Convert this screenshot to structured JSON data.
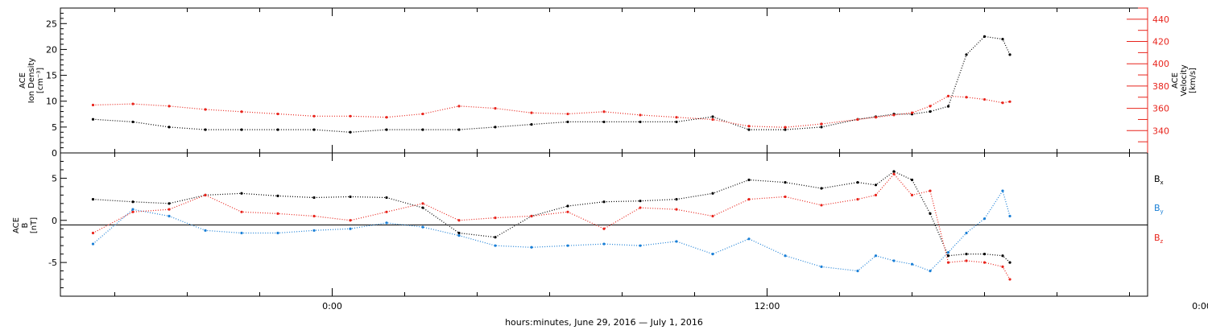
{
  "colors": {
    "black": "#000000",
    "red": "#e8241c",
    "blue": "#1a7fd6"
  },
  "chart_data": [
    {
      "type": "scatter",
      "panel": "top",
      "ylabel_lines": [
        "ACE",
        "Ion Density",
        "[cm⁻³]"
      ],
      "ylim": [
        0,
        28
      ],
      "yticks": [
        0,
        5,
        10,
        15,
        20,
        25
      ],
      "y2label_lines": [
        "ACE",
        "Velocity",
        "[km/s]"
      ],
      "y2lim": [
        320,
        450
      ],
      "y2ticks": [
        340,
        360,
        380,
        400,
        420,
        440
      ],
      "x_hours": [
        -7.5,
        22.5
      ],
      "series": [
        {
          "axis": "left",
          "color": "#000000",
          "x": [
            -6.6,
            -5.5,
            -4.5,
            -3.5,
            -2.5,
            -1.5,
            -0.5,
            0.5,
            1.5,
            2.5,
            3.5,
            4.5,
            5.5,
            6.5,
            7.5,
            8.5,
            9.5,
            10.5,
            11.5,
            12.5,
            13.5,
            14.5,
            15,
            15.5,
            16,
            16.5,
            17,
            17.5,
            18,
            18.5,
            18.7
          ],
          "y": [
            6.5,
            6,
            5,
            4.5,
            4.5,
            4.5,
            4.5,
            4,
            4.5,
            4.5,
            4.5,
            5,
            5.5,
            6,
            6,
            6,
            6,
            7,
            4.5,
            4.5,
            5,
            6.5,
            7,
            7.5,
            7.5,
            8,
            9,
            19,
            22.5,
            22,
            19
          ]
        },
        {
          "axis": "right",
          "color": "#e8241c",
          "x": [
            -6.6,
            -5.5,
            -4.5,
            -3.5,
            -2.5,
            -1.5,
            -0.5,
            0.5,
            1.5,
            2.5,
            3.5,
            4.5,
            5.5,
            6.5,
            7.5,
            8.5,
            9.5,
            10.5,
            11.5,
            12.5,
            13.5,
            14.5,
            15,
            15.5,
            16,
            16.5,
            17,
            17.5,
            18,
            18.5,
            18.7
          ],
          "y": [
            363,
            364,
            362,
            359,
            357,
            355,
            353,
            353,
            352,
            355,
            362,
            360,
            356,
            355,
            357,
            354,
            352,
            350,
            344,
            343,
            346,
            350,
            352,
            354,
            356,
            362,
            371,
            370,
            368,
            365,
            366
          ]
        }
      ]
    },
    {
      "type": "scatter",
      "panel": "bottom",
      "ylabel_lines": [
        "ACE",
        "B",
        "[nT]"
      ],
      "ylim": [
        -9,
        8
      ],
      "yticks": [
        -5,
        0,
        5
      ],
      "x_hours": [
        -7.5,
        22.5
      ],
      "series": [
        {
          "name": "Bx",
          "color": "#000000",
          "x": [
            -6.6,
            -5.5,
            -4.5,
            -3.5,
            -2.5,
            -1.5,
            -0.5,
            0.5,
            1.5,
            2.5,
            3.5,
            4.5,
            5.5,
            6.5,
            7.5,
            8.5,
            9.5,
            10.5,
            11.5,
            12.5,
            13.5,
            14.5,
            15,
            15.5,
            16,
            16.5,
            17,
            17.5,
            18,
            18.5,
            18.7
          ],
          "y": [
            2.5,
            2.2,
            2.0,
            3.0,
            3.2,
            2.9,
            2.7,
            2.8,
            2.7,
            1.5,
            -1.5,
            -2.0,
            0.5,
            1.7,
            2.2,
            2.3,
            2.5,
            3.2,
            4.8,
            4.5,
            3.8,
            4.5,
            4.2,
            5.8,
            4.8,
            0.8,
            -4.2,
            -4.0,
            -4.0,
            -4.2,
            -5.0
          ]
        },
        {
          "name": "By",
          "color": "#1a7fd6",
          "x": [
            -6.6,
            -5.5,
            -4.5,
            -3.5,
            -2.5,
            -1.5,
            -0.5,
            0.5,
            1.5,
            2.5,
            3.5,
            4.5,
            5.5,
            6.5,
            7.5,
            8.5,
            9.5,
            10.5,
            11.5,
            12.5,
            13.5,
            14.5,
            15,
            15.5,
            16,
            16.5,
            17,
            17.5,
            18,
            18.5,
            18.7
          ],
          "y": [
            -2.8,
            1.3,
            0.5,
            -1.2,
            -1.5,
            -1.5,
            -1.2,
            -1.0,
            -0.3,
            -0.8,
            -1.8,
            -3.0,
            -3.2,
            -3.0,
            -2.8,
            -3.0,
            -2.5,
            -4.0,
            -2.2,
            -4.2,
            -5.5,
            -6.0,
            -4.2,
            -4.8,
            -5.2,
            -6.0,
            -3.8,
            -1.5,
            0.2,
            3.5,
            0.5
          ]
        },
        {
          "name": "Bz",
          "color": "#e8241c",
          "x": [
            -6.6,
            -5.5,
            -4.5,
            -3.5,
            -2.5,
            -1.5,
            -0.5,
            0.5,
            1.5,
            2.5,
            3.5,
            4.5,
            5.5,
            6.5,
            7.5,
            8.5,
            9.5,
            10.5,
            11.5,
            12.5,
            13.5,
            14.5,
            15,
            15.5,
            16,
            16.5,
            17,
            17.5,
            18,
            18.5,
            18.7
          ],
          "y": [
            -1.5,
            1.0,
            1.3,
            3.0,
            1.0,
            0.8,
            0.5,
            0.0,
            1.0,
            2.0,
            0.0,
            0.3,
            0.5,
            1.0,
            -1.0,
            1.5,
            1.3,
            0.5,
            2.5,
            2.8,
            1.8,
            2.5,
            3.0,
            5.5,
            3.0,
            3.5,
            -5.0,
            -4.8,
            -5.0,
            -5.5,
            -7.0
          ]
        }
      ],
      "legend_labels": {
        "bx": "Bx",
        "by": "By",
        "bz": "Bz"
      }
    }
  ],
  "x_axis": {
    "tick_labels": [
      "0:00",
      "12:00",
      "0:00"
    ],
    "tick_hours": [
      0,
      12,
      24
    ],
    "xlabel": "hours:minutes, June 29, 2016 — July  1, 2016"
  },
  "legend": {
    "bx_main": "B",
    "bx_sub": "x",
    "by_main": "B",
    "by_sub": "y",
    "bz_main": "B",
    "bz_sub": "z"
  }
}
